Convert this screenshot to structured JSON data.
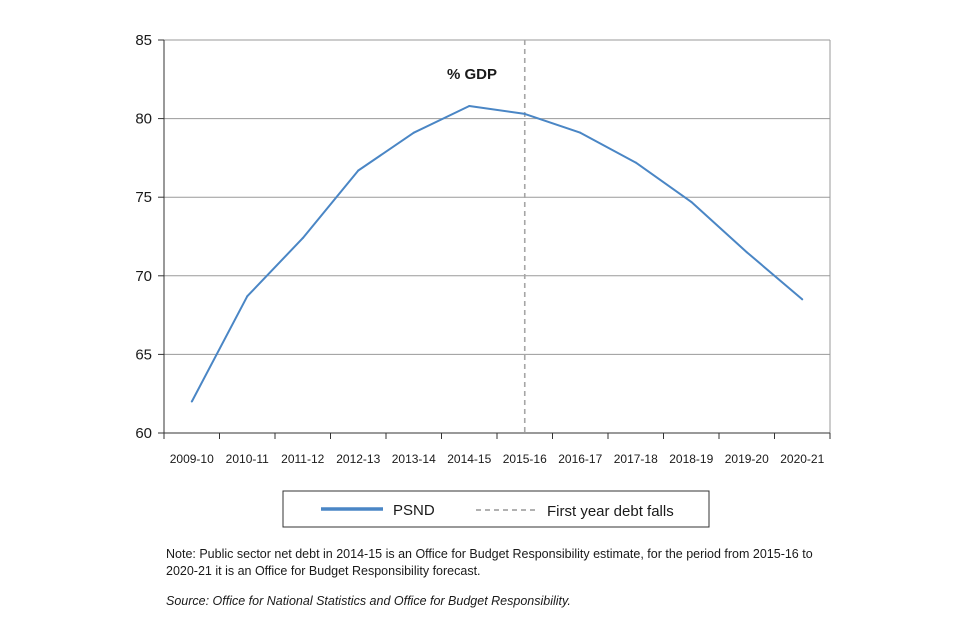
{
  "chart_data": {
    "type": "line",
    "annotation": "% GDP",
    "categories": [
      "2009-10",
      "2010-11",
      "2011-12",
      "2012-13",
      "2013-14",
      "2014-15",
      "2015-16",
      "2016-17",
      "2017-18",
      "2018-19",
      "2019-20",
      "2020-21"
    ],
    "series": [
      {
        "name": "PSND",
        "values": [
          62.0,
          68.7,
          72.4,
          76.7,
          79.1,
          80.8,
          80.3,
          79.1,
          77.2,
          74.7,
          71.5,
          68.5
        ],
        "color": "#4a86c5"
      }
    ],
    "reference_line": {
      "label": "First year debt falls",
      "position": "between 2015-16 and 2016-17",
      "color": "#a6a6a6"
    },
    "yticks": [
      60,
      65,
      70,
      75,
      80,
      85
    ],
    "ylim": [
      60,
      85
    ],
    "grid": "horizontal",
    "legend_position": "bottom",
    "xlabel": "",
    "ylabel": ""
  },
  "footer": {
    "note": "Note: Public sector net debt in 2014-15 is an Office for Budget Responsibility estimate, for the period from 2015-16 to 2020-21 it is an Office for Budget Responsibility forecast.",
    "source": "Source: Office for National Statistics and Office for Budget Responsibility."
  }
}
